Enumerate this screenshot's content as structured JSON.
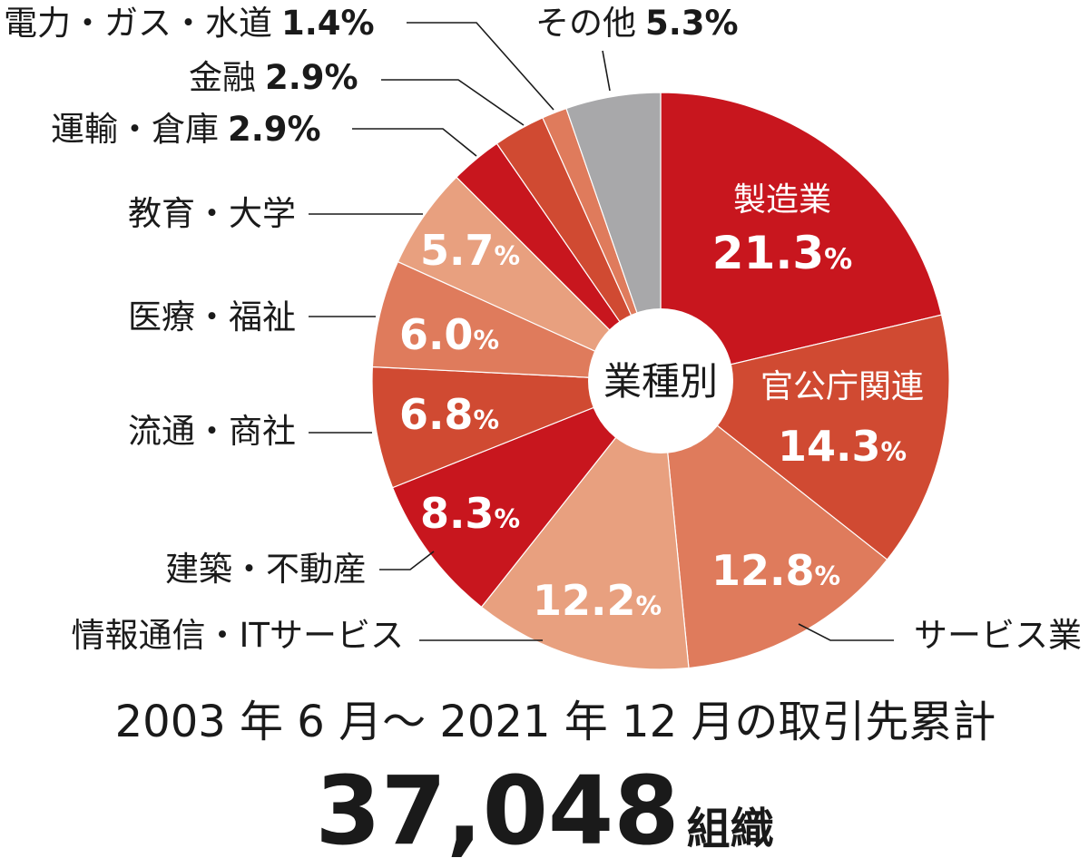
{
  "chart_data": {
    "type": "pie",
    "center_label": "業種別",
    "period_caption": "2003 年 6 月〜 2021 年 12 月の取引先累計",
    "total_value": "37,048",
    "total_unit": "組織",
    "slices": [
      {
        "label": "製造業",
        "value": 21.3,
        "display": "21.3",
        "color": "#c8161e"
      },
      {
        "label": "官公庁関連",
        "value": 14.3,
        "display": "14.3",
        "color": "#d04a32"
      },
      {
        "label": "サービス業",
        "value": 12.8,
        "display": "12.8",
        "color": "#df7b5c"
      },
      {
        "label": "情報通信・ITサービス",
        "value": 12.2,
        "display": "12.2",
        "color": "#e8a07f"
      },
      {
        "label": "建築・不動産",
        "value": 8.3,
        "display": "8.3",
        "color": "#c8161e"
      },
      {
        "label": "流通・商社",
        "value": 6.8,
        "display": "6.8",
        "color": "#d04a32"
      },
      {
        "label": "医療・福祉",
        "value": 6.0,
        "display": "6.0",
        "color": "#df7b5c"
      },
      {
        "label": "教育・大学",
        "value": 5.7,
        "display": "5.7",
        "color": "#e8a07f"
      },
      {
        "label": "運輸・倉庫",
        "value": 2.9,
        "display": "2.9",
        "color": "#c8161e"
      },
      {
        "label": "金融",
        "value": 2.9,
        "display": "2.9",
        "color": "#d04a32"
      },
      {
        "label": "電力・ガス・水道",
        "value": 1.4,
        "display": "1.4",
        "color": "#df7b5c"
      },
      {
        "label": "その他",
        "value": 5.3,
        "display": "5.3",
        "color": "#a8a8aa"
      }
    ]
  }
}
